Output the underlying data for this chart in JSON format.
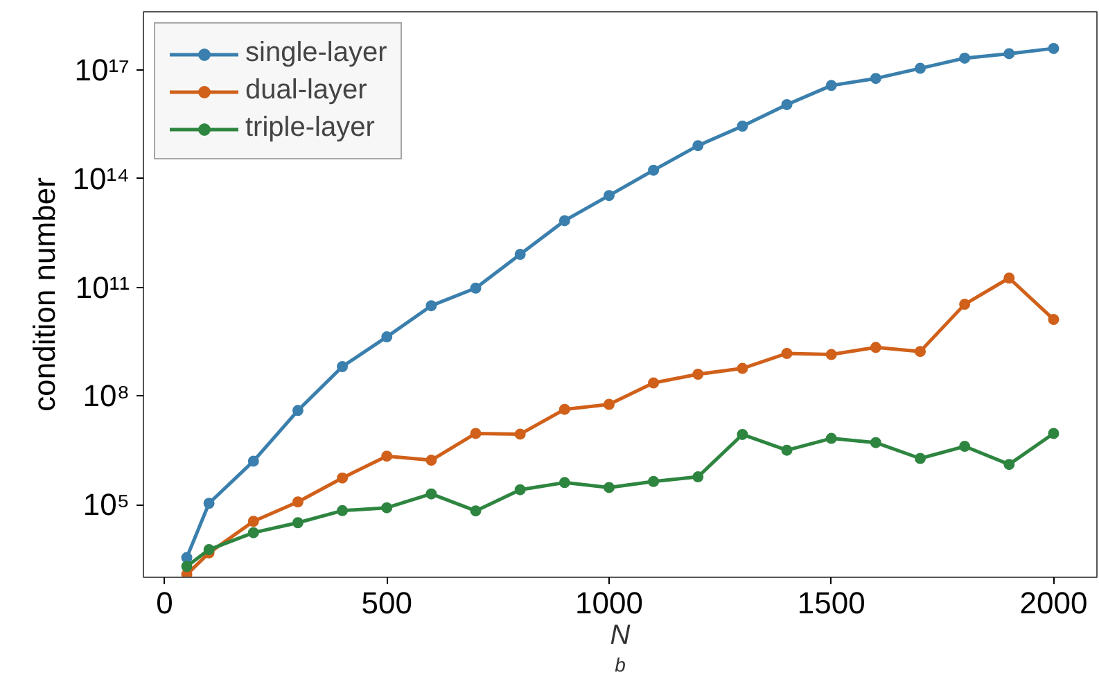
{
  "chart_data": {
    "type": "line",
    "xlabel": "N$_{b}$",
    "ylabel": "condition number",
    "log": "y",
    "grid": false,
    "legend": "top left",
    "marker": "circle",
    "line_style": "solid",
    "x": [
      50,
      100,
      200,
      300,
      400,
      500,
      600,
      700,
      800,
      900,
      1000,
      1100,
      1200,
      1300,
      1400,
      1500,
      1600,
      1700,
      1800,
      1900,
      2000
    ],
    "xlim": [
      -47.5,
      2097.5
    ],
    "xticks": [
      0,
      500,
      1000,
      1500,
      2000
    ],
    "ylim": [
      1000.0,
      4e+18
    ],
    "yticks": [
      {
        "value": 100000.0,
        "label": "10⁵"
      },
      {
        "value": 100000000.0,
        "label": "10⁸"
      },
      {
        "value": 100000000000.0,
        "label": "10¹¹"
      },
      {
        "value": 100000000000000.0,
        "label": "10¹⁴"
      },
      {
        "value": 1e+17,
        "label": "10¹⁷"
      }
    ],
    "series": [
      {
        "name": "single-layer",
        "color": "#3a7fad",
        "values": [
          3500.0,
          110000.0,
          1600000.0,
          40000000.0,
          650000000.0,
          4300000000.0,
          31000000000.0,
          95000000000.0,
          810000000000.0,
          6900000000000.0,
          34000000000000.0,
          170000000000000.0,
          810000000000000.0,
          2800000000000000.0,
          1.1e+16,
          3.7e+16,
          5.8e+16,
          1.1e+17,
          2.1e+17,
          2.8e+17,
          3.9e+17
        ]
      },
      {
        "name": "dual-layer",
        "color": "#d0601a",
        "values": [
          1200.0,
          4700.0,
          35000.0,
          120000.0,
          550000.0,
          2200000.0,
          1700000.0,
          9300000.0,
          8900000.0,
          43000000.0,
          59000000.0,
          230000000.0,
          400000000.0,
          580000000.0,
          1500000000.0,
          1400000000.0,
          2200000000.0,
          1700000000.0,
          34000000000.0,
          180000000000.0,
          13000000000.0
        ]
      },
      {
        "name": "triple-layer",
        "color": "#2e8540",
        "values": [
          2000.0,
          5800.0,
          17000.0,
          32000.0,
          69000.0,
          83000.0,
          200000.0,
          68000.0,
          260000.0,
          410000.0,
          300000.0,
          440000.0,
          590000.0,
          8700000.0,
          3200000.0,
          6800000.0,
          5200000.0,
          1900000.0,
          4100000.0,
          1300000.0,
          9300000.0
        ]
      }
    ]
  }
}
